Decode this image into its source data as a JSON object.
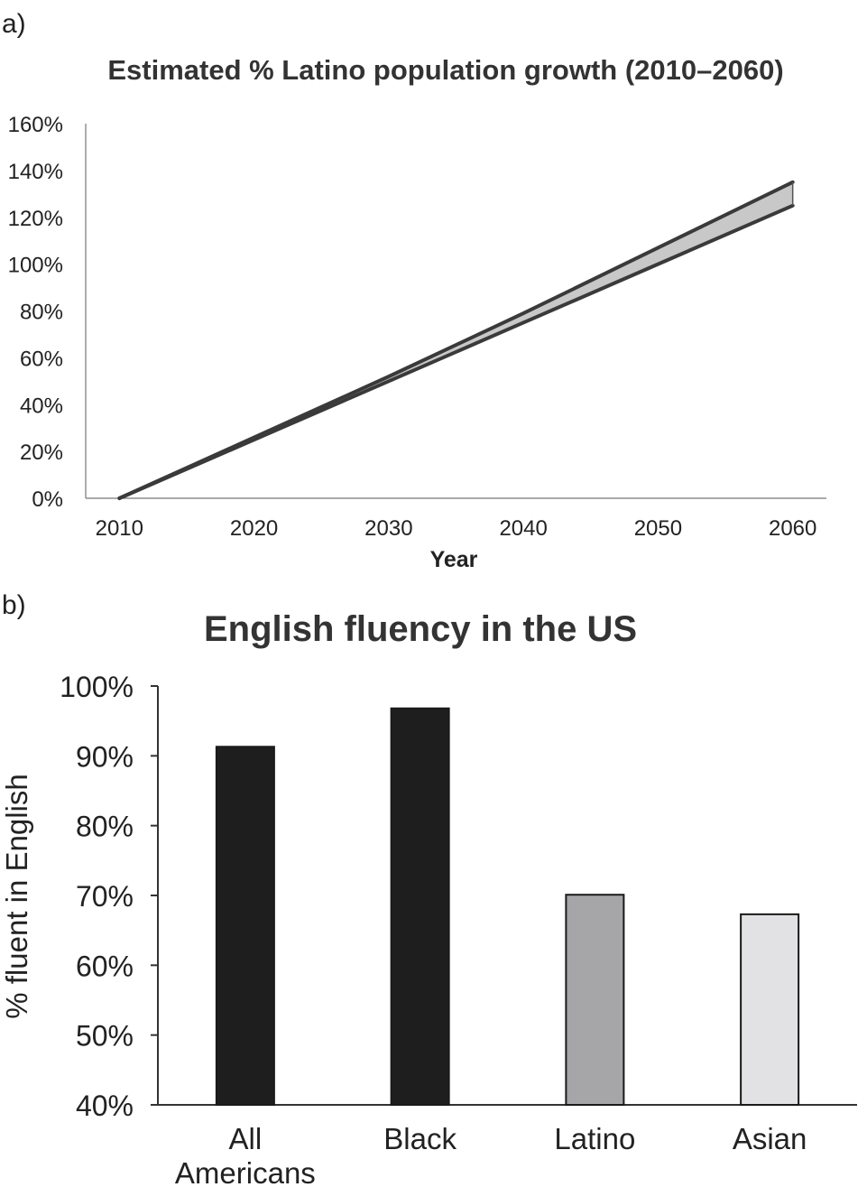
{
  "chart_data": [
    {
      "panel_label": "a)",
      "type": "area",
      "title": "Estimated % Latino population growth (2010–2060)",
      "xlabel": "Year",
      "ylabel": "",
      "x": [
        2010,
        2020,
        2030,
        2040,
        2050,
        2060
      ],
      "xticks": [
        "2010",
        "2020",
        "2030",
        "2040",
        "2050",
        "2060"
      ],
      "yticks": [
        "0%",
        "20%",
        "40%",
        "60%",
        "80%",
        "100%",
        "120%",
        "140%",
        "160%"
      ],
      "ylim": [
        0,
        160
      ],
      "xlim": [
        2007.5,
        2062.5
      ],
      "series": [
        {
          "values": [
            0,
            26,
            52,
            79,
            107,
            135
          ]
        },
        {
          "values": [
            0,
            25,
            50,
            75,
            100,
            125
          ]
        }
      ],
      "band_color": "#c8c8c8",
      "line_color": "#3a3a3a",
      "grid": false
    },
    {
      "panel_label": "b)",
      "type": "bar",
      "title": "English fluency in the US",
      "xlabel": "",
      "ylabel": "% fluent in English",
      "categories": [
        [
          "All",
          "Americans"
        ],
        [
          "Black"
        ],
        [
          "Latino"
        ],
        [
          "Asian"
        ]
      ],
      "values": [
        91.3,
        96.8,
        70.1,
        67.3
      ],
      "colors": [
        "#1e1e1e",
        "#1e1e1e",
        "#a6a6a8",
        "#e2e2e4"
      ],
      "yticks": [
        "40%",
        "50%",
        "60%",
        "70%",
        "80%",
        "90%",
        "100%"
      ],
      "ylim": [
        40,
        100
      ],
      "grid": false
    }
  ]
}
